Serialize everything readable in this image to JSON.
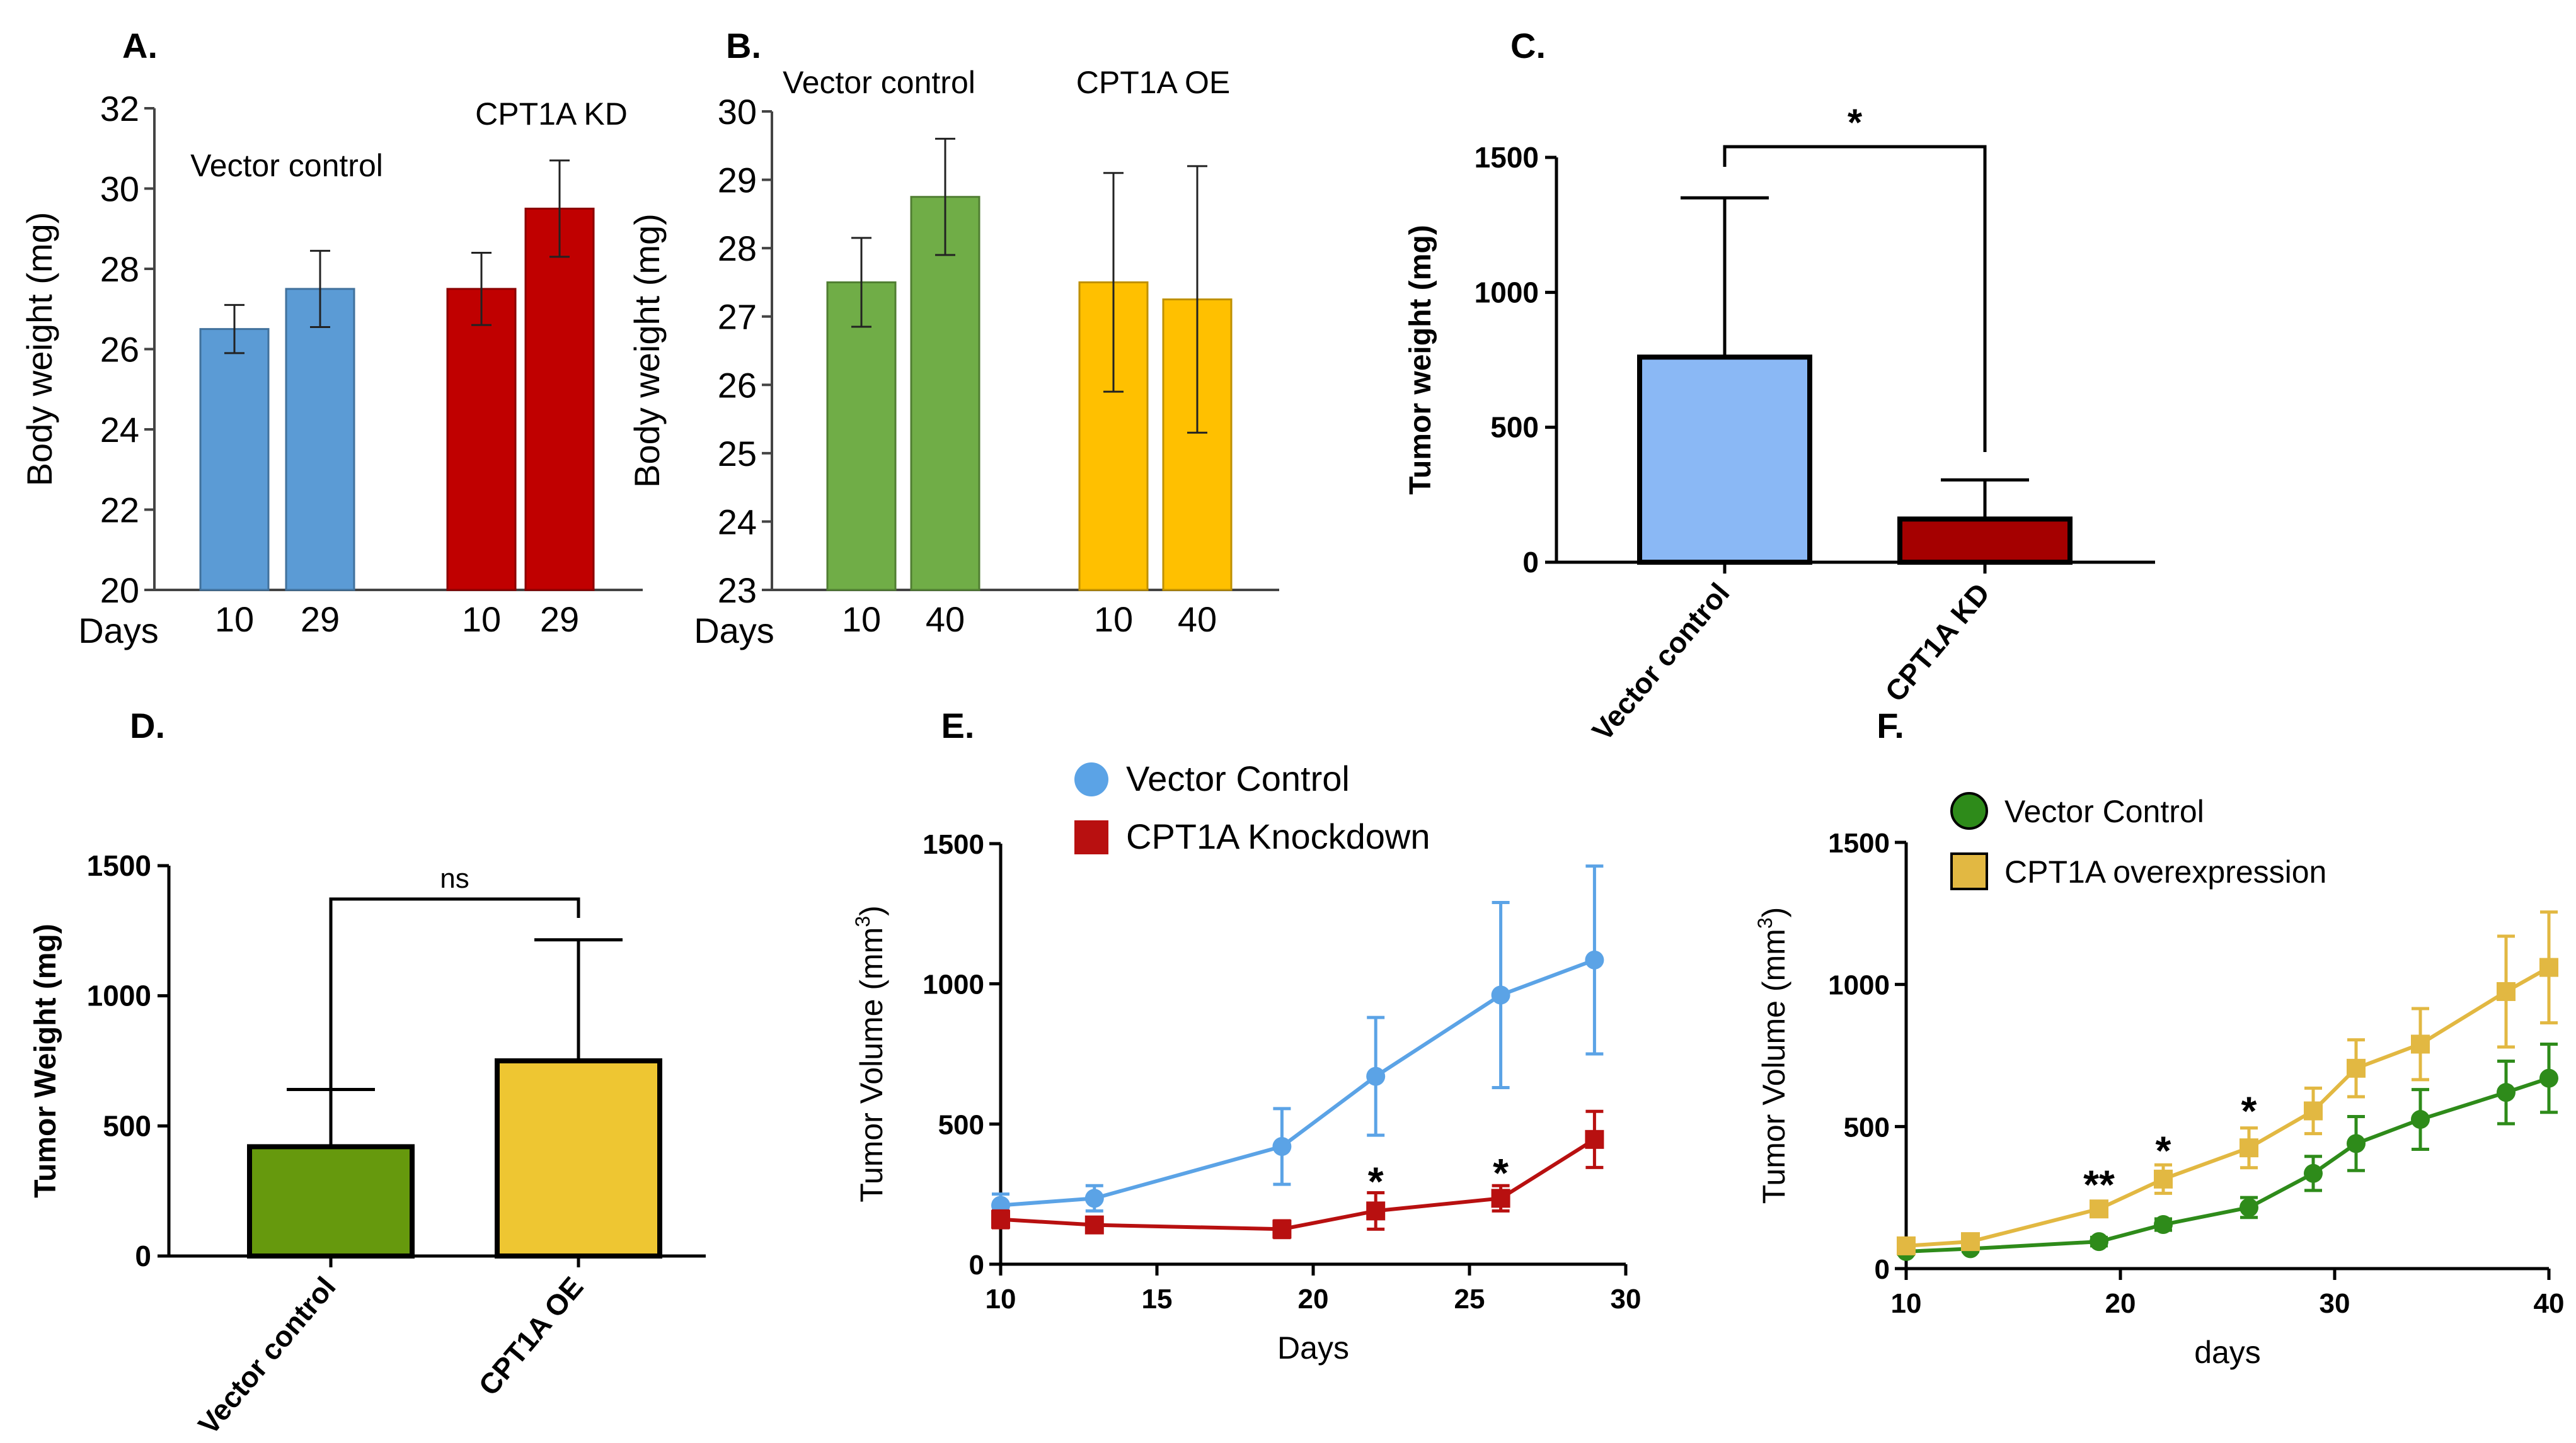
{
  "chart_data": [
    {
      "panel": "A.",
      "type": "bar",
      "xlabel": "Days",
      "ylabel": "Body weight (mg)",
      "ylim": [
        20,
        32
      ],
      "yticks": [
        20,
        22,
        24,
        26,
        28,
        30,
        32
      ],
      "groups": [
        {
          "name": "Vector control",
          "color": "#5b9bd5",
          "border": "#41719c",
          "bars": [
            {
              "day": "10",
              "value": 26.5,
              "err": 0.6
            },
            {
              "day": "29",
              "value": 27.5,
              "err": 0.95
            }
          ]
        },
        {
          "name": "CPT1A KD",
          "color": "#c00000",
          "border": "#8b0000",
          "bars": [
            {
              "day": "10",
              "value": 27.5,
              "err": 0.9
            },
            {
              "day": "29",
              "value": 29.5,
              "err": 1.2
            }
          ]
        }
      ]
    },
    {
      "panel": "B.",
      "type": "bar",
      "xlabel": "Days",
      "ylabel": "Body weight (mg)",
      "ylim": [
        23,
        30
      ],
      "yticks": [
        23,
        24,
        25,
        26,
        27,
        28,
        29,
        30
      ],
      "groups": [
        {
          "name": "Vector control",
          "color": "#70ad47",
          "border": "#507e32",
          "bars": [
            {
              "day": "10",
              "value": 27.5,
              "err": 0.65
            },
            {
              "day": "40",
              "value": 28.75,
              "err": 0.85
            }
          ]
        },
        {
          "name": "CPT1A OE",
          "color": "#ffc000",
          "border": "#bf9000",
          "bars": [
            {
              "day": "10",
              "value": 27.5,
              "err": 1.6
            },
            {
              "day": "40",
              "value": 27.25,
              "err": 1.95
            }
          ]
        }
      ]
    },
    {
      "panel": "C.",
      "type": "bar",
      "ylabel": "Tumor weight (mg)",
      "ylim": [
        0,
        1500
      ],
      "yticks": [
        0,
        500,
        1000,
        1500
      ],
      "categories": [
        "Vector control",
        "CPT1A KD"
      ],
      "values": [
        760,
        160
      ],
      "errors": [
        590,
        145
      ],
      "colors": [
        "#8ab8f5",
        "#a50000"
      ],
      "significance": "*"
    },
    {
      "panel": "D.",
      "type": "bar",
      "ylabel": "Tumor  Weight (mg)",
      "ylim": [
        0,
        1500
      ],
      "yticks": [
        0,
        500,
        1000,
        1500
      ],
      "categories": [
        "Vector control",
        "CPT1A OE"
      ],
      "values": [
        420,
        750
      ],
      "errors": [
        220,
        465
      ],
      "colors": [
        "#66990d",
        "#eec632"
      ],
      "significance": "ns"
    },
    {
      "panel": "E.",
      "type": "line",
      "xlabel": "Days",
      "ylabel_prefix": "Tumor Volume (mm",
      "ylabel_sup": "3",
      "ylabel_suffix": ")",
      "xlim": [
        10,
        30
      ],
      "xticks": [
        10,
        15,
        20,
        25,
        30
      ],
      "ylim": [
        0,
        1500
      ],
      "yticks": [
        0,
        500,
        1000,
        1500
      ],
      "series": [
        {
          "name": "Vector Control",
          "color": "#5ba3e6",
          "marker": "circle",
          "x": [
            10,
            13,
            19,
            22,
            26,
            29
          ],
          "values": [
            210,
            235,
            420,
            670,
            960,
            1085
          ],
          "errors": [
            40,
            45,
            135,
            210,
            330,
            335
          ]
        },
        {
          "name": "CPT1A Knockdown",
          "color": "#b81010",
          "marker": "square",
          "x": [
            10,
            13,
            19,
            22,
            26,
            29
          ],
          "values": [
            160,
            140,
            125,
            190,
            235,
            445
          ],
          "errors": [
            30,
            25,
            30,
            65,
            45,
            100
          ]
        }
      ],
      "annotations": [
        {
          "x": 22,
          "y": 300,
          "text": "*"
        },
        {
          "x": 26,
          "y": 330,
          "text": "*"
        }
      ]
    },
    {
      "panel": "F.",
      "type": "line",
      "xlabel": "days",
      "ylabel_prefix": "Tumor Volume (mm",
      "ylabel_sup": "3",
      "ylabel_suffix": ")",
      "xlim": [
        10,
        40
      ],
      "xticks": [
        10,
        20,
        30,
        40
      ],
      "ylim": [
        0,
        1500
      ],
      "yticks": [
        0,
        500,
        1000,
        1500
      ],
      "series": [
        {
          "name": "Vector Control",
          "color": "#2e8b1a",
          "marker": "circle",
          "x": [
            10,
            13,
            19,
            22,
            26,
            29,
            31,
            34,
            38,
            40
          ],
          "values": [
            60,
            70,
            95,
            155,
            215,
            335,
            440,
            525,
            620,
            670
          ],
          "errors": [
            10,
            10,
            15,
            20,
            35,
            60,
            95,
            105,
            110,
            120
          ]
        },
        {
          "name": "CPT1A overexpression",
          "color": "#e2b842",
          "marker": "square",
          "x": [
            10,
            13,
            19,
            22,
            26,
            29,
            31,
            34,
            38,
            40
          ],
          "values": [
            80,
            95,
            210,
            315,
            425,
            555,
            705,
            790,
            975,
            1060
          ],
          "errors": [
            10,
            10,
            25,
            50,
            70,
            80,
            100,
            125,
            195,
            195
          ]
        }
      ],
      "annotations": [
        {
          "x": 19,
          "y": 300,
          "text": "**"
        },
        {
          "x": 22,
          "y": 420,
          "text": "*"
        },
        {
          "x": 26,
          "y": 560,
          "text": "*"
        }
      ]
    }
  ]
}
